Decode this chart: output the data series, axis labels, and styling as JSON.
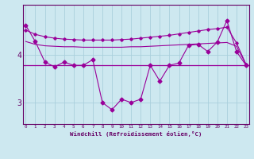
{
  "x": [
    0,
    1,
    2,
    3,
    4,
    5,
    6,
    7,
    8,
    9,
    10,
    11,
    12,
    13,
    14,
    15,
    16,
    17,
    18,
    19,
    20,
    21,
    22,
    23
  ],
  "line1_y": [
    4.62,
    4.28,
    3.85,
    3.75,
    3.85,
    3.78,
    3.78,
    3.9,
    3.0,
    2.85,
    3.07,
    3.0,
    3.07,
    3.78,
    3.45,
    3.78,
    3.83,
    4.2,
    4.22,
    4.07,
    4.27,
    4.72,
    4.07,
    3.78
  ],
  "line2_y": [
    4.52,
    4.43,
    4.38,
    4.35,
    4.33,
    4.32,
    4.31,
    4.31,
    4.31,
    4.31,
    4.32,
    4.33,
    4.35,
    4.37,
    4.39,
    4.41,
    4.44,
    4.47,
    4.5,
    4.53,
    4.55,
    4.58,
    4.25,
    3.8
  ],
  "line3_y": [
    4.28,
    4.22,
    4.19,
    4.18,
    4.17,
    4.17,
    4.16,
    4.16,
    4.16,
    4.16,
    4.16,
    4.17,
    4.17,
    4.18,
    4.19,
    4.2,
    4.21,
    4.22,
    4.23,
    4.24,
    4.25,
    4.26,
    4.18,
    3.8
  ],
  "hline_y": 3.78,
  "line_color": "#990099",
  "bg_color": "#cde8f0",
  "grid_color": "#aacfdc",
  "axis_color": "#660066",
  "xlabel": "Windchill (Refroidissement éolien,°C)",
  "ylim": [
    2.55,
    5.05
  ],
  "xlim": [
    -0.3,
    23.3
  ],
  "yticks": [
    3,
    4
  ],
  "xticks": [
    0,
    1,
    2,
    3,
    4,
    5,
    6,
    7,
    8,
    9,
    10,
    11,
    12,
    13,
    14,
    15,
    16,
    17,
    18,
    19,
    20,
    21,
    22,
    23
  ]
}
